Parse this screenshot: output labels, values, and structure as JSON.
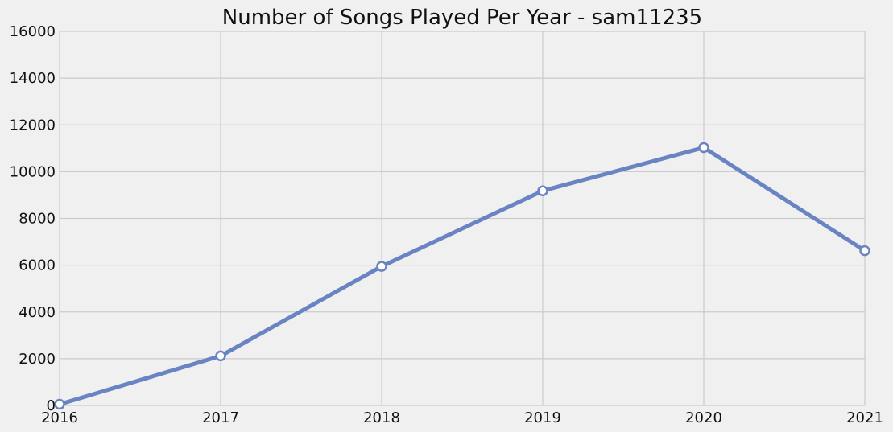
{
  "chart_data": {
    "type": "line",
    "title": "Number of Songs Played Per Year - sam11235",
    "xlabel": "",
    "ylabel": "",
    "x": [
      "2016",
      "2017",
      "2018",
      "2019",
      "2020",
      "2021"
    ],
    "xlim": [
      2016,
      2021
    ],
    "ylim": [
      0,
      16000
    ],
    "yticks": [
      0,
      2000,
      4000,
      6000,
      8000,
      10000,
      12000,
      14000,
      16000
    ],
    "grid": true,
    "series": [
      {
        "values": [
          50,
          2120,
          5950,
          9180,
          11030,
          6620
        ],
        "color": "#6a84c3",
        "marker": "circle",
        "marker_fill": "#ffffff"
      }
    ]
  },
  "colors": {
    "background": "#f0f0f0",
    "grid": "#cbcbcb",
    "line": "#6a84c3"
  }
}
